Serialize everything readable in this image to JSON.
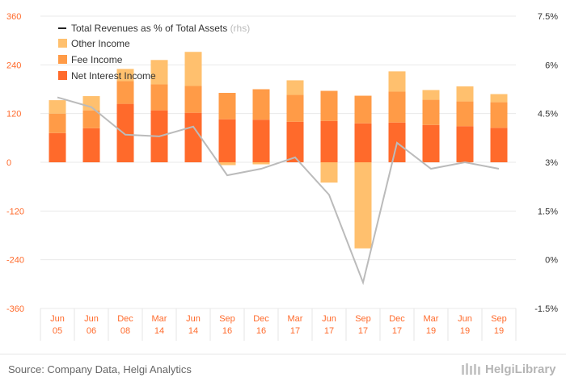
{
  "chart_data": {
    "type": "bar",
    "stacked": true,
    "categories": [
      [
        "Jun",
        "05"
      ],
      [
        "Jun",
        "06"
      ],
      [
        "Dec",
        "08"
      ],
      [
        "Mar",
        "14"
      ],
      [
        "Jun",
        "14"
      ],
      [
        "Sep",
        "16"
      ],
      [
        "Dec",
        "16"
      ],
      [
        "Mar",
        "17"
      ],
      [
        "Jun",
        "17"
      ],
      [
        "Sep",
        "17"
      ],
      [
        "Dec",
        "17"
      ],
      [
        "Mar",
        "19"
      ],
      [
        "Jun",
        "19"
      ],
      [
        "Sep",
        "19"
      ]
    ],
    "series": [
      {
        "name": "Net Interest Income",
        "color": "#ff6a2b",
        "values": [
          72,
          84,
          144,
          128,
          122,
          106,
          105,
          100,
          102,
          96,
          98,
          92,
          89,
          85
        ]
      },
      {
        "name": "Fee Income",
        "color": "#ff9b47",
        "values": [
          48,
          44,
          56,
          64,
          66,
          65,
          75,
          66,
          74,
          68,
          76,
          62,
          61,
          63
        ]
      },
      {
        "name": "Other Income",
        "color": "#ffc06e",
        "values": [
          33,
          35,
          30,
          60,
          84,
          -7,
          -5,
          36,
          -50,
          -212,
          50,
          24,
          37,
          20
        ]
      }
    ],
    "line": {
      "name": "Total Revenues as % of Total Assets",
      "suffix": "(rhs)",
      "color": "#bbbbbb",
      "values": [
        5.0,
        4.7,
        3.85,
        3.8,
        4.1,
        2.6,
        2.8,
        3.15,
        2.0,
        -0.7,
        3.6,
        2.8,
        3.0,
        2.8
      ]
    },
    "y_left": {
      "min": -360,
      "max": 360,
      "ticks": [
        "360",
        "240",
        "120",
        "0",
        "-120",
        "-240",
        "-360"
      ]
    },
    "y_right": {
      "min": -1.5,
      "max": 7.5,
      "ticks": [
        "7.5%",
        "6%",
        "4.5%",
        "3%",
        "1.5%",
        "0%",
        "-1.5%"
      ]
    },
    "grid": true,
    "legend_position": "top-left"
  },
  "footer": {
    "source": "Source: Company Data, Helgi Analytics",
    "logo_text": "HelgiLibrary"
  }
}
